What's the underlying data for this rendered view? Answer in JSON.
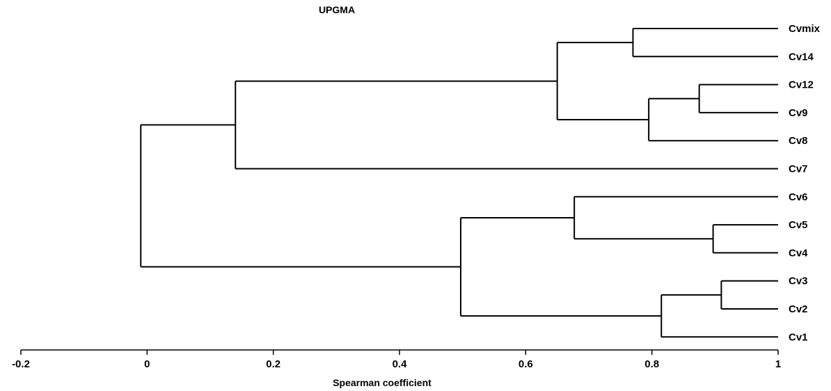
{
  "chart_data": {
    "type": "dendrogram",
    "title": "UPGMA",
    "xlabel": "Spearman coefficient",
    "xlim": [
      -0.2,
      1
    ],
    "xticks": [
      -0.2,
      0,
      0.2,
      0.4,
      0.6,
      0.8,
      1
    ],
    "leaves": [
      "Cvmix",
      "Cv14",
      "Cv12",
      "Cv9",
      "Cv8",
      "Cv7",
      "Cv6",
      "Cv5",
      "Cv4",
      "Cv3",
      "Cv2",
      "Cv1"
    ],
    "leaf_value": 1,
    "merges": [
      {
        "id": "m1",
        "children": [
          "Cvmix",
          "Cv14"
        ],
        "value": 0.77
      },
      {
        "id": "m2",
        "children": [
          "Cv12",
          "Cv9"
        ],
        "value": 0.875
      },
      {
        "id": "m3",
        "children": [
          "m2",
          "Cv8"
        ],
        "value": 0.795
      },
      {
        "id": "m4",
        "children": [
          "m1",
          "m3"
        ],
        "value": 0.65
      },
      {
        "id": "m5",
        "children": [
          "m4",
          "Cv7"
        ],
        "value": 0.14
      },
      {
        "id": "m6",
        "children": [
          "Cv5",
          "Cv4"
        ],
        "value": 0.897
      },
      {
        "id": "m7",
        "children": [
          "Cv6",
          "m6"
        ],
        "value": 0.677
      },
      {
        "id": "m8",
        "children": [
          "Cv3",
          "Cv2"
        ],
        "value": 0.91
      },
      {
        "id": "m9",
        "children": [
          "m8",
          "Cv1"
        ],
        "value": 0.815
      },
      {
        "id": "m10",
        "children": [
          "m7",
          "m9"
        ],
        "value": 0.497
      },
      {
        "id": "m11",
        "children": [
          "m5",
          "m10"
        ],
        "value": -0.01
      }
    ]
  }
}
